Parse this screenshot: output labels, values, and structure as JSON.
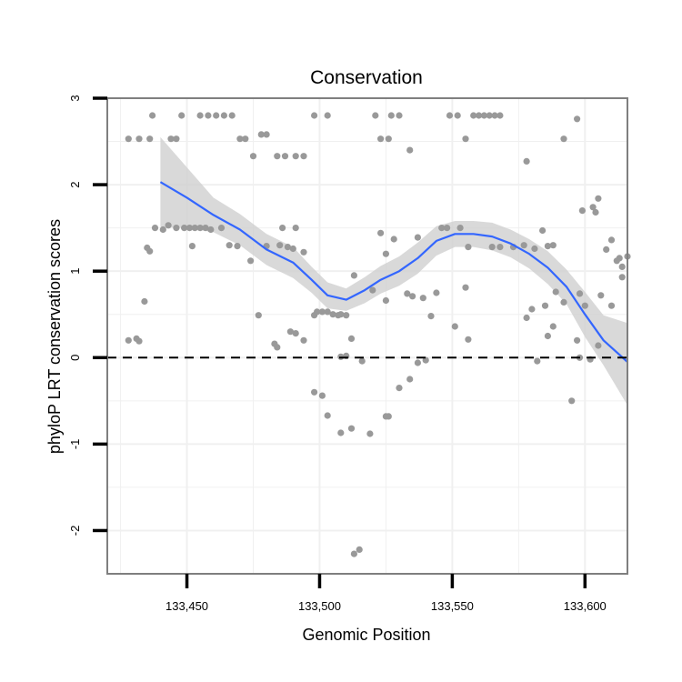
{
  "chart_data": {
    "type": "scatter",
    "title": "Conservation",
    "xlabel": "Genomic Position",
    "ylabel": "phyloP LRT conservation scores",
    "xlim": [
      133420,
      133616
    ],
    "ylim": [
      -2.5,
      3.0
    ],
    "x_ticks": [
      133450,
      133500,
      133550,
      133600
    ],
    "x_tick_labels": [
      "133,450",
      "133,500",
      "133,550",
      "133,600"
    ],
    "y_ticks": [
      -2,
      -1,
      0,
      1,
      2,
      3
    ],
    "y_tick_labels": [
      "-2",
      "-1",
      "0",
      "1",
      "2",
      "3"
    ],
    "grid": true,
    "reference_line": {
      "y": 0,
      "style": "dashed"
    },
    "colors": {
      "points": "#999999",
      "smooth_line": "#3366FF",
      "ribbon": "#cfcfcf",
      "reference": "#000000",
      "panel_border": "#7f7f7f",
      "grid": "#f0f0f0"
    },
    "points": [
      [
        133428,
        2.53
      ],
      [
        133432,
        2.53
      ],
      [
        133436,
        2.53
      ],
      [
        133437,
        2.8
      ],
      [
        133444,
        2.53
      ],
      [
        133446,
        2.53
      ],
      [
        133448,
        2.8
      ],
      [
        133455,
        2.8
      ],
      [
        133458,
        2.8
      ],
      [
        133461,
        2.8
      ],
      [
        133464,
        2.8
      ],
      [
        133467,
        2.8
      ],
      [
        133470,
        2.53
      ],
      [
        133472,
        2.53
      ],
      [
        133475,
        2.33
      ],
      [
        133478,
        2.58
      ],
      [
        133480,
        2.58
      ],
      [
        133484,
        2.33
      ],
      [
        133487,
        2.33
      ],
      [
        133491,
        2.33
      ],
      [
        133494,
        2.33
      ],
      [
        133498,
        2.8
      ],
      [
        133503,
        2.8
      ],
      [
        133521,
        2.8
      ],
      [
        133523,
        2.53
      ],
      [
        133526,
        2.53
      ],
      [
        133527,
        2.8
      ],
      [
        133530,
        2.8
      ],
      [
        133534,
        2.4
      ],
      [
        133549,
        2.8
      ],
      [
        133552,
        2.8
      ],
      [
        133555,
        2.53
      ],
      [
        133558,
        2.8
      ],
      [
        133560,
        2.8
      ],
      [
        133562,
        2.8
      ],
      [
        133564,
        2.8
      ],
      [
        133566,
        2.8
      ],
      [
        133568,
        2.8
      ],
      [
        133578,
        2.27
      ],
      [
        133592,
        2.53
      ],
      [
        133597,
        2.76
      ],
      [
        133438,
        1.5
      ],
      [
        133441,
        1.48
      ],
      [
        133443,
        1.53
      ],
      [
        133446,
        1.5
      ],
      [
        133449,
        1.5
      ],
      [
        133451,
        1.5
      ],
      [
        133453,
        1.5
      ],
      [
        133455,
        1.5
      ],
      [
        133457,
        1.5
      ],
      [
        133459,
        1.48
      ],
      [
        133463,
        1.5
      ],
      [
        133435,
        1.27
      ],
      [
        133436,
        1.23
      ],
      [
        133452,
        1.29
      ],
      [
        133466,
        1.3
      ],
      [
        133469,
        1.29
      ],
      [
        133474,
        1.12
      ],
      [
        133480,
        1.29
      ],
      [
        133485,
        1.3
      ],
      [
        133488,
        1.28
      ],
      [
        133490,
        1.26
      ],
      [
        133494,
        1.22
      ],
      [
        133486,
        1.5
      ],
      [
        133491,
        1.5
      ],
      [
        133513,
        0.95
      ],
      [
        133523,
        1.44
      ],
      [
        133525,
        1.2
      ],
      [
        133528,
        1.37
      ],
      [
        133537,
        1.39
      ],
      [
        133546,
        1.5
      ],
      [
        133548,
        1.5
      ],
      [
        133553,
        1.5
      ],
      [
        133556,
        1.28
      ],
      [
        133565,
        1.28
      ],
      [
        133568,
        1.28
      ],
      [
        133573,
        1.28
      ],
      [
        133577,
        1.3
      ],
      [
        133581,
        1.26
      ],
      [
        133584,
        1.47
      ],
      [
        133586,
        1.29
      ],
      [
        133588,
        1.3
      ],
      [
        133599,
        1.7
      ],
      [
        133603,
        1.74
      ],
      [
        133604,
        1.68
      ],
      [
        133605,
        1.84
      ],
      [
        133608,
        1.25
      ],
      [
        133610,
        1.36
      ],
      [
        133612,
        1.12
      ],
      [
        133613,
        1.15
      ],
      [
        133616,
        1.17
      ],
      [
        133614,
        1.05
      ],
      [
        133428,
        0.2
      ],
      [
        133431,
        0.22
      ],
      [
        133432,
        0.19
      ],
      [
        133434,
        0.65
      ],
      [
        133477,
        0.49
      ],
      [
        133483,
        0.16
      ],
      [
        133484,
        0.12
      ],
      [
        133489,
        0.3
      ],
      [
        133491,
        0.28
      ],
      [
        133494,
        0.2
      ],
      [
        133498,
        0.49
      ],
      [
        133499,
        0.53
      ],
      [
        133501,
        0.53
      ],
      [
        133503,
        0.53
      ],
      [
        133505,
        0.5
      ],
      [
        133507,
        0.49
      ],
      [
        133508,
        0.5
      ],
      [
        133510,
        0.49
      ],
      [
        133520,
        0.78
      ],
      [
        133525,
        0.66
      ],
      [
        133533,
        0.74
      ],
      [
        133535,
        0.71
      ],
      [
        133539,
        0.69
      ],
      [
        133542,
        0.48
      ],
      [
        133544,
        0.75
      ],
      [
        133555,
        0.81
      ],
      [
        133578,
        0.46
      ],
      [
        133580,
        0.56
      ],
      [
        133585,
        0.6
      ],
      [
        133589,
        0.76
      ],
      [
        133592,
        0.64
      ],
      [
        133598,
        0.74
      ],
      [
        133600,
        0.6
      ],
      [
        133606,
        0.72
      ],
      [
        133610,
        0.6
      ],
      [
        133614,
        0.93
      ],
      [
        133498,
        -0.4
      ],
      [
        133501,
        -0.44
      ],
      [
        133503,
        -0.67
      ],
      [
        133508,
        0.01
      ],
      [
        133510,
        0.02
      ],
      [
        133512,
        0.22
      ],
      [
        133516,
        -0.04
      ],
      [
        133519,
        -0.88
      ],
      [
        133525,
        -0.68
      ],
      [
        133526,
        -0.68
      ],
      [
        133530,
        -0.35
      ],
      [
        133534,
        -0.25
      ],
      [
        133537,
        -0.06
      ],
      [
        133540,
        -0.03
      ],
      [
        133551,
        0.36
      ],
      [
        133556,
        0.21
      ],
      [
        133582,
        -0.04
      ],
      [
        133586,
        0.25
      ],
      [
        133588,
        0.36
      ],
      [
        133595,
        -0.5
      ],
      [
        133597,
        0.2
      ],
      [
        133598,
        0.0
      ],
      [
        133602,
        -0.02
      ],
      [
        133605,
        0.14
      ],
      [
        133508,
        -0.87
      ],
      [
        133512,
        -0.82
      ],
      [
        133513,
        -2.27
      ],
      [
        133515,
        -2.22
      ]
    ],
    "smooth_line": {
      "x": [
        133440,
        133450,
        133460,
        133470,
        133480,
        133490,
        133497,
        133503,
        133510,
        133517,
        133523,
        133530,
        133537,
        133544,
        133551,
        133558,
        133565,
        133572,
        133579,
        133586,
        133593,
        133600,
        133607,
        133616
      ],
      "y": [
        2.03,
        1.85,
        1.65,
        1.48,
        1.25,
        1.1,
        0.9,
        0.72,
        0.67,
        0.78,
        0.9,
        1.0,
        1.15,
        1.35,
        1.43,
        1.43,
        1.4,
        1.32,
        1.2,
        1.04,
        0.82,
        0.5,
        0.2,
        -0.05
      ]
    },
    "ribbon": {
      "x": [
        133440,
        133450,
        133460,
        133470,
        133480,
        133490,
        133497,
        133503,
        133510,
        133517,
        133523,
        133530,
        133537,
        133544,
        133551,
        133558,
        133565,
        133572,
        133579,
        133586,
        133593,
        133600,
        133607,
        133616
      ],
      "upper": [
        2.55,
        2.2,
        1.85,
        1.66,
        1.43,
        1.28,
        1.05,
        0.87,
        0.8,
        0.93,
        1.06,
        1.17,
        1.33,
        1.52,
        1.58,
        1.58,
        1.56,
        1.48,
        1.37,
        1.23,
        1.02,
        0.76,
        0.49,
        0.4
      ],
      "lower": [
        1.51,
        1.5,
        1.45,
        1.3,
        1.07,
        0.92,
        0.75,
        0.57,
        0.54,
        0.63,
        0.74,
        0.83,
        0.97,
        1.18,
        1.28,
        1.28,
        1.24,
        1.16,
        1.03,
        0.85,
        0.62,
        0.24,
        -0.09,
        -0.55
      ]
    }
  }
}
